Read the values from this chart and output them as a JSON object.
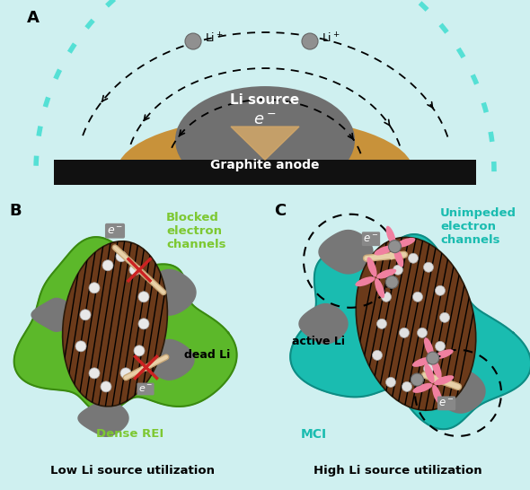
{
  "bg_color": "#cff0f0",
  "panel_A": {
    "label": "A",
    "li_source_color": "#707070",
    "graphite_color": "#c8923a",
    "current_collector_color": "#111111",
    "teal_border_color": "#55e0d5",
    "electron_arrow_color": "#d4a868",
    "li_source_text": "Li source",
    "graphite_text": "Graphite anode",
    "e_minus_text": "e⁻"
  },
  "panel_B": {
    "label": "B",
    "rei_color": "#5cb82a",
    "rei_edge_color": "#3a8a10",
    "graphite_color": "#6b3a1a",
    "dead_li_color": "#777777",
    "label_color_blocked": "#7dc832",
    "blocked_title": "Blocked\nelectron\nchannels",
    "dead_li_label": "dead Li",
    "dense_rei_label": "Dense REI",
    "bottom_label": "Low Li source utilization"
  },
  "panel_C": {
    "label": "C",
    "mci_color": "#1abcb0",
    "mci_edge_color": "#0e8c84",
    "graphite_color": "#6b3a1a",
    "active_li_color": "#777777",
    "label_color_unimp": "#1abcb0",
    "unimp_title": "Unimpeded\nelectron\nchannels",
    "active_li_label": "active Li",
    "mci_label": "MCI",
    "bottom_label": "High Li source utilization",
    "propeller_color": "#f080a0"
  }
}
